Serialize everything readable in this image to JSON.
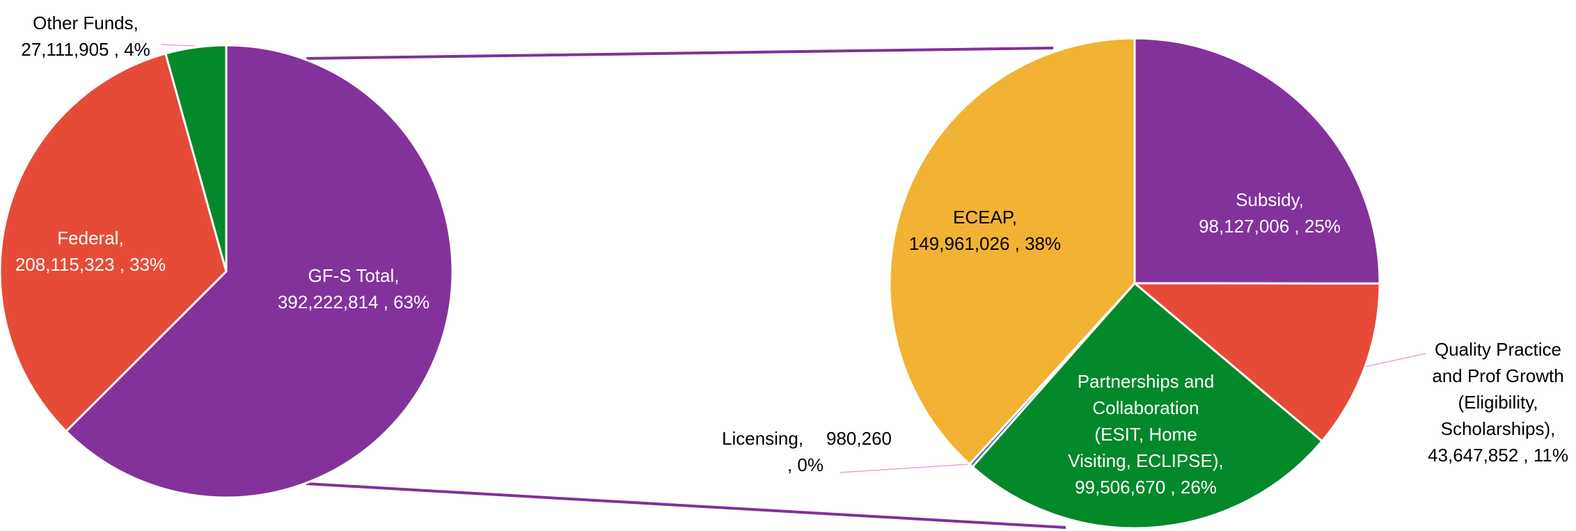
{
  "chart_data": [
    {
      "type": "pie",
      "categories": [
        [
          "GF-S Total,"
        ],
        [
          "Federal,"
        ],
        [
          "Other Funds,"
        ]
      ],
      "values": [
        392222814,
        208115323,
        27111905
      ],
      "value_labels": [
        [
          "392,222,814 , 63%"
        ],
        [
          "208,115,323 , 33%"
        ],
        [
          "27,111,905 , 4%"
        ]
      ],
      "colors": [
        "#84329b",
        "#e64b37",
        "#03882a"
      ],
      "label_colors": [
        "#ffffff",
        "#ffffff",
        "#000000"
      ]
    },
    {
      "type": "pie",
      "categories": [
        [
          "Subsidy,"
        ],
        [
          "Quality Practice",
          "and Prof Growth",
          "(Eligibility,",
          "Scholarships),"
        ],
        [
          "Partnerships and",
          "Collaboration",
          "(ESIT, Home",
          "Visiting, ECLIPSE),"
        ],
        [
          "Licensing,"
        ],
        [
          "ECEAP,"
        ]
      ],
      "values": [
        98127006,
        43647852,
        99506670,
        980260,
        149961026
      ],
      "value_labels": [
        [
          "98,127,006 , 25%"
        ],
        [
          "43,647,852 , 11%"
        ],
        [
          "99,506,670 , 26%"
        ],
        [
          "980,260",
          ", 0%"
        ],
        [
          "149,961,026 , 38%"
        ]
      ],
      "colors": [
        "#84329b",
        "#e64b37",
        "#03882a",
        "#3a6fb0",
        "#f2b233"
      ],
      "label_colors": [
        "#ffffff",
        "#000000",
        "#ffffff",
        "#000000",
        "#000000"
      ]
    }
  ]
}
